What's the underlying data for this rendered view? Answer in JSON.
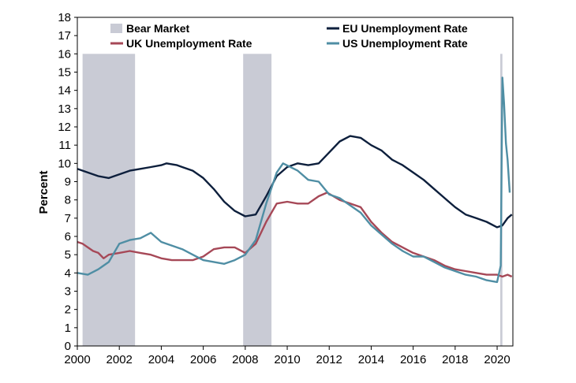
{
  "chart_data": {
    "type": "line",
    "title": "",
    "xlabel": "",
    "ylabel": "Percent",
    "xlim": [
      2000,
      2020.75
    ],
    "ylim": [
      0,
      18
    ],
    "x_ticks": [
      2000,
      2002,
      2004,
      2006,
      2008,
      2010,
      2012,
      2014,
      2016,
      2018,
      2020
    ],
    "y_ticks": [
      0,
      1,
      2,
      3,
      4,
      5,
      6,
      7,
      8,
      9,
      10,
      11,
      12,
      13,
      14,
      15,
      16,
      17,
      18
    ],
    "bear_markets": [
      {
        "start": 2000.25,
        "end": 2002.75
      },
      {
        "start": 2007.9,
        "end": 2009.25
      },
      {
        "start": 2020.15,
        "end": 2020.25
      }
    ],
    "legend": {
      "bear_market": "Bear Market",
      "eu": "EU Unemployment Rate",
      "uk": "UK Unemployment Rate",
      "us": "US Unemployment Rate"
    },
    "series": [
      {
        "name": "EU Unemployment Rate",
        "color": "#0d1f3c",
        "points": [
          [
            2000,
            9.7
          ],
          [
            2000.5,
            9.5
          ],
          [
            2001,
            9.3
          ],
          [
            2001.5,
            9.2
          ],
          [
            2002,
            9.4
          ],
          [
            2002.5,
            9.6
          ],
          [
            2003,
            9.7
          ],
          [
            2003.5,
            9.8
          ],
          [
            2004,
            9.9
          ],
          [
            2004.25,
            10.0
          ],
          [
            2004.75,
            9.9
          ],
          [
            2005,
            9.8
          ],
          [
            2005.5,
            9.6
          ],
          [
            2006,
            9.2
          ],
          [
            2006.5,
            8.6
          ],
          [
            2007,
            7.9
          ],
          [
            2007.5,
            7.4
          ],
          [
            2008,
            7.1
          ],
          [
            2008.5,
            7.2
          ],
          [
            2009,
            8.2
          ],
          [
            2009.5,
            9.3
          ],
          [
            2010,
            9.8
          ],
          [
            2010.5,
            10.0
          ],
          [
            2011,
            9.9
          ],
          [
            2011.5,
            10.0
          ],
          [
            2012,
            10.6
          ],
          [
            2012.5,
            11.2
          ],
          [
            2013,
            11.5
          ],
          [
            2013.5,
            11.4
          ],
          [
            2014,
            11.0
          ],
          [
            2014.5,
            10.7
          ],
          [
            2015,
            10.2
          ],
          [
            2015.5,
            9.9
          ],
          [
            2016,
            9.5
          ],
          [
            2016.5,
            9.1
          ],
          [
            2017,
            8.6
          ],
          [
            2017.5,
            8.1
          ],
          [
            2018,
            7.6
          ],
          [
            2018.5,
            7.2
          ],
          [
            2019,
            7.0
          ],
          [
            2019.5,
            6.8
          ],
          [
            2020,
            6.5
          ],
          [
            2020.25,
            6.6
          ],
          [
            2020.5,
            7.0
          ],
          [
            2020.7,
            7.2
          ]
        ]
      },
      {
        "name": "UK Unemployment Rate",
        "color": "#a64857",
        "points": [
          [
            2000,
            5.7
          ],
          [
            2000.25,
            5.6
          ],
          [
            2000.5,
            5.4
          ],
          [
            2000.75,
            5.2
          ],
          [
            2001,
            5.1
          ],
          [
            2001.25,
            4.8
          ],
          [
            2001.5,
            5.0
          ],
          [
            2002,
            5.1
          ],
          [
            2002.5,
            5.2
          ],
          [
            2003,
            5.1
          ],
          [
            2003.5,
            5.0
          ],
          [
            2004,
            4.8
          ],
          [
            2004.5,
            4.7
          ],
          [
            2005,
            4.7
          ],
          [
            2005.5,
            4.7
          ],
          [
            2006,
            4.9
          ],
          [
            2006.5,
            5.3
          ],
          [
            2007,
            5.4
          ],
          [
            2007.5,
            5.4
          ],
          [
            2008,
            5.1
          ],
          [
            2008.5,
            5.6
          ],
          [
            2009,
            6.8
          ],
          [
            2009.5,
            7.8
          ],
          [
            2010,
            7.9
          ],
          [
            2010.5,
            7.8
          ],
          [
            2011,
            7.8
          ],
          [
            2011.5,
            8.2
          ],
          [
            2011.9,
            8.4
          ],
          [
            2012.5,
            8.0
          ],
          [
            2013,
            7.8
          ],
          [
            2013.5,
            7.6
          ],
          [
            2014,
            6.8
          ],
          [
            2014.5,
            6.2
          ],
          [
            2015,
            5.7
          ],
          [
            2015.5,
            5.4
          ],
          [
            2016,
            5.1
          ],
          [
            2016.5,
            4.9
          ],
          [
            2017,
            4.7
          ],
          [
            2017.5,
            4.4
          ],
          [
            2018,
            4.2
          ],
          [
            2018.5,
            4.1
          ],
          [
            2019,
            4.0
          ],
          [
            2019.5,
            3.9
          ],
          [
            2020,
            3.9
          ],
          [
            2020.25,
            3.8
          ],
          [
            2020.5,
            3.9
          ],
          [
            2020.7,
            3.8
          ]
        ]
      },
      {
        "name": "US Unemployment Rate",
        "color": "#4f8ea4",
        "points": [
          [
            2000,
            4.0
          ],
          [
            2000.5,
            3.9
          ],
          [
            2001,
            4.2
          ],
          [
            2001.5,
            4.6
          ],
          [
            2002,
            5.6
          ],
          [
            2002.5,
            5.8
          ],
          [
            2003,
            5.9
          ],
          [
            2003.5,
            6.2
          ],
          [
            2004,
            5.7
          ],
          [
            2004.5,
            5.5
          ],
          [
            2005,
            5.3
          ],
          [
            2005.5,
            5.0
          ],
          [
            2006,
            4.7
          ],
          [
            2006.5,
            4.6
          ],
          [
            2007,
            4.5
          ],
          [
            2007.5,
            4.7
          ],
          [
            2008,
            5.0
          ],
          [
            2008.5,
            5.8
          ],
          [
            2009,
            7.8
          ],
          [
            2009.5,
            9.5
          ],
          [
            2009.8,
            10.0
          ],
          [
            2010.5,
            9.6
          ],
          [
            2011,
            9.1
          ],
          [
            2011.5,
            9.0
          ],
          [
            2012,
            8.3
          ],
          [
            2012.5,
            8.1
          ],
          [
            2013,
            7.7
          ],
          [
            2013.5,
            7.3
          ],
          [
            2014,
            6.6
          ],
          [
            2014.5,
            6.1
          ],
          [
            2015,
            5.6
          ],
          [
            2015.5,
            5.2
          ],
          [
            2016,
            4.9
          ],
          [
            2016.5,
            4.9
          ],
          [
            2017,
            4.6
          ],
          [
            2017.5,
            4.3
          ],
          [
            2018,
            4.1
          ],
          [
            2018.5,
            3.9
          ],
          [
            2019,
            3.8
          ],
          [
            2019.5,
            3.6
          ],
          [
            2020,
            3.5
          ],
          [
            2020.17,
            4.4
          ],
          [
            2020.25,
            14.7
          ],
          [
            2020.33,
            13.3
          ],
          [
            2020.42,
            11.1
          ],
          [
            2020.5,
            10.2
          ],
          [
            2020.6,
            8.4
          ]
        ]
      }
    ]
  }
}
